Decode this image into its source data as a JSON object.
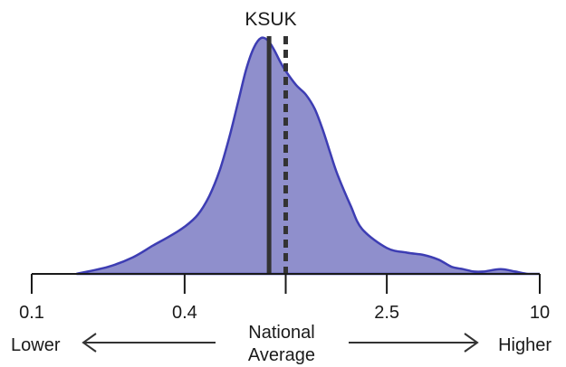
{
  "chart_data": {
    "type": "area",
    "title": "KSUK",
    "x_scale": "log",
    "xlim": [
      0.1,
      10
    ],
    "x_ticks": [
      {
        "value": 0.1,
        "label": "0.1"
      },
      {
        "value": 0.4,
        "label": "0.4"
      },
      {
        "value": 1,
        "label": ""
      },
      {
        "value": 2.5,
        "label": "2.5"
      },
      {
        "value": 10,
        "label": "10"
      }
    ],
    "density": {
      "x": [
        0.15,
        0.2,
        0.25,
        0.3,
        0.35,
        0.4,
        0.45,
        0.5,
        0.55,
        0.6,
        0.65,
        0.7,
        0.75,
        0.8,
        0.85,
        0.9,
        0.95,
        1.0,
        1.1,
        1.2,
        1.3,
        1.4,
        1.5,
        1.6,
        1.8,
        2.0,
        2.5,
        3.0,
        3.5,
        4.0,
        4.5,
        5.0,
        5.5,
        6.0,
        7.0,
        8.0,
        9.0,
        10.0
      ],
      "y": [
        0.0,
        0.03,
        0.07,
        0.12,
        0.16,
        0.2,
        0.25,
        0.33,
        0.44,
        0.58,
        0.73,
        0.87,
        0.96,
        1.0,
        0.99,
        0.95,
        0.9,
        0.86,
        0.8,
        0.76,
        0.7,
        0.61,
        0.51,
        0.42,
        0.29,
        0.19,
        0.11,
        0.09,
        0.08,
        0.06,
        0.03,
        0.02,
        0.01,
        0.01,
        0.02,
        0.01,
        0.0,
        0.0
      ]
    },
    "reference_lines": [
      {
        "value": 0.86,
        "style": "solid",
        "label": ""
      },
      {
        "value": 1.0,
        "style": "dashed",
        "label": ""
      }
    ],
    "direction_labels": {
      "left": "Lower",
      "center_line1": "National",
      "center_line2": "Average",
      "right": "Higher"
    },
    "colors": {
      "fill": "#8f8fcc",
      "stroke": "#3d3db3",
      "reference": "#333333",
      "axis": "#1a1a1a"
    }
  }
}
